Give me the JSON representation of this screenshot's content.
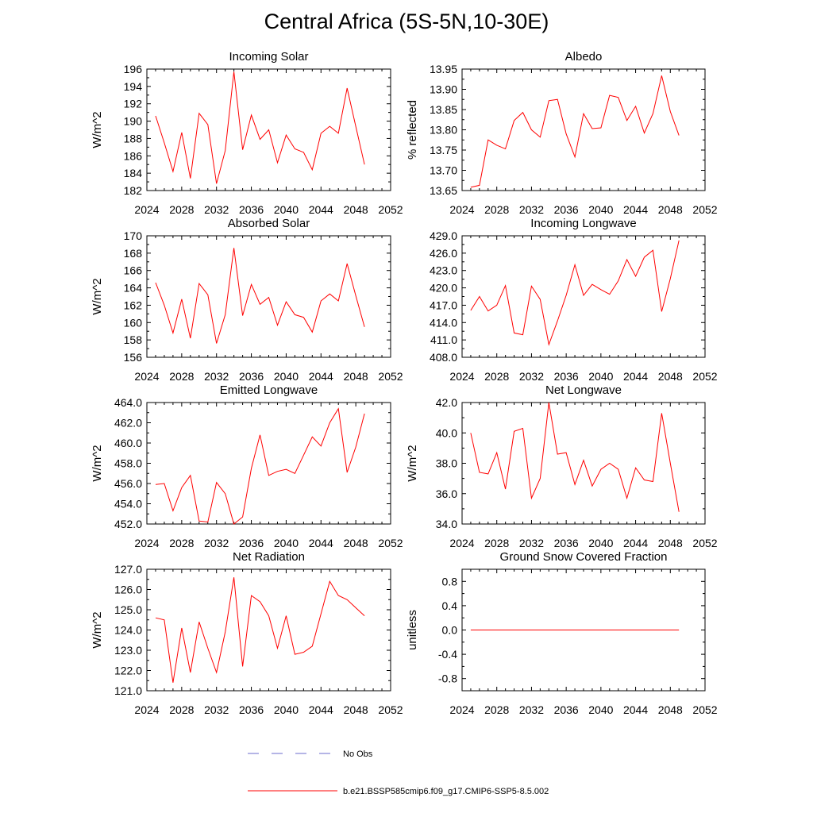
{
  "page_title": "Central Africa (5S-5N,10-30E)",
  "colors": {
    "model": "#ff0000",
    "obs": "#6b6bcc",
    "axis": "#000000"
  },
  "legend": [
    {
      "label": "No Obs",
      "style": "dashed",
      "color": "#6b6bcc"
    },
    {
      "label": "b.e21.BSSP585cmip6.f09_g17.CMIP6-SSP5-8.5.002",
      "style": "solid",
      "color": "#ff0000"
    }
  ],
  "chart_data": [
    {
      "type": "line",
      "title": "Incoming Solar",
      "ylabel": "W/m^2",
      "xlim": [
        2024,
        2052
      ],
      "xticks": [
        "2024",
        "2028",
        "2032",
        "2036",
        "2040",
        "2044",
        "2048",
        "2052"
      ],
      "ylim": [
        182,
        196
      ],
      "yticks": [
        "182",
        "184",
        "186",
        "188",
        "190",
        "192",
        "194",
        "196"
      ],
      "series": [
        {
          "x": [
            2025,
            2026,
            2027,
            2028,
            2029,
            2030,
            2031,
            2032,
            2033,
            2034,
            2035,
            2036,
            2037,
            2038,
            2039,
            2040,
            2041,
            2042,
            2043,
            2044,
            2045,
            2046,
            2047,
            2048,
            2049
          ],
          "y": [
            190.6,
            187.5,
            184.2,
            188.7,
            183.4,
            190.9,
            189.6,
            182.8,
            186.6,
            195.7,
            186.7,
            190.7,
            187.9,
            189.0,
            185.2,
            188.4,
            186.8,
            186.4,
            184.4,
            188.6,
            189.4,
            188.6,
            193.8,
            189.4,
            185.0
          ]
        }
      ]
    },
    {
      "type": "line",
      "title": "Albedo",
      "ylabel": "% reflected",
      "xlim": [
        2024,
        2052
      ],
      "xticks": [
        "2024",
        "2028",
        "2032",
        "2036",
        "2040",
        "2044",
        "2048",
        "2052"
      ],
      "ylim": [
        13.65,
        13.95
      ],
      "yticks": [
        "13.65",
        "13.70",
        "13.75",
        "13.80",
        "13.85",
        "13.90",
        "13.95"
      ],
      "series": [
        {
          "x": [
            2025,
            2026,
            2027,
            2028,
            2029,
            2030,
            2031,
            2032,
            2033,
            2034,
            2035,
            2036,
            2037,
            2038,
            2039,
            2040,
            2041,
            2042,
            2043,
            2044,
            2045,
            2046,
            2047,
            2048,
            2049
          ],
          "y": [
            13.658,
            13.663,
            13.775,
            13.762,
            13.753,
            13.823,
            13.843,
            13.8,
            13.782,
            13.872,
            13.875,
            13.79,
            13.733,
            13.84,
            13.803,
            13.805,
            13.885,
            13.88,
            13.823,
            13.858,
            13.792,
            13.84,
            13.934,
            13.845,
            13.786
          ]
        }
      ]
    },
    {
      "type": "line",
      "title": "Absorbed Solar",
      "ylabel": "W/m^2",
      "xlim": [
        2024,
        2052
      ],
      "xticks": [
        "2024",
        "2028",
        "2032",
        "2036",
        "2040",
        "2044",
        "2048",
        "2052"
      ],
      "ylim": [
        156,
        170
      ],
      "yticks": [
        "156",
        "158",
        "160",
        "162",
        "164",
        "166",
        "168",
        "170"
      ],
      "series": [
        {
          "x": [
            2025,
            2026,
            2027,
            2028,
            2029,
            2030,
            2031,
            2032,
            2033,
            2034,
            2035,
            2036,
            2037,
            2038,
            2039,
            2040,
            2041,
            2042,
            2043,
            2044,
            2045,
            2046,
            2047,
            2048,
            2049
          ],
          "y": [
            164.6,
            162.0,
            158.8,
            162.7,
            158.2,
            164.5,
            163.2,
            157.6,
            160.9,
            168.6,
            160.8,
            164.4,
            162.1,
            162.9,
            159.7,
            162.4,
            160.9,
            160.6,
            158.9,
            162.5,
            163.3,
            162.5,
            166.8,
            163.1,
            159.5
          ]
        }
      ]
    },
    {
      "type": "line",
      "title": "Incoming Longwave",
      "ylabel": "",
      "xlim": [
        2024,
        2052
      ],
      "xticks": [
        "2024",
        "2028",
        "2032",
        "2036",
        "2040",
        "2044",
        "2048",
        "2052"
      ],
      "ylim": [
        408,
        429
      ],
      "yticks": [
        "408.0",
        "411.0",
        "414.0",
        "417.0",
        "420.0",
        "423.0",
        "426.0",
        "429.0"
      ],
      "series": [
        {
          "x": [
            2025,
            2026,
            2027,
            2028,
            2029,
            2030,
            2031,
            2032,
            2033,
            2034,
            2035,
            2036,
            2037,
            2038,
            2039,
            2040,
            2041,
            2042,
            2043,
            2044,
            2045,
            2046,
            2047,
            2048,
            2049
          ],
          "y": [
            416.1,
            418.5,
            416.0,
            417.0,
            420.4,
            412.2,
            411.9,
            420.3,
            418.0,
            410.2,
            414.3,
            418.7,
            424.0,
            418.7,
            420.6,
            419.7,
            418.9,
            421.2,
            424.9,
            422.0,
            425.3,
            426.5,
            415.9,
            421.6,
            428.2
          ]
        }
      ]
    },
    {
      "type": "line",
      "title": "Emitted Longwave",
      "ylabel": "W/m^2",
      "xlim": [
        2024,
        2052
      ],
      "xticks": [
        "2024",
        "2028",
        "2032",
        "2036",
        "2040",
        "2044",
        "2048",
        "2052"
      ],
      "ylim": [
        452,
        464
      ],
      "yticks": [
        "452.0",
        "454.0",
        "456.0",
        "458.0",
        "460.0",
        "462.0",
        "464.0"
      ],
      "series": [
        {
          "x": [
            2025,
            2026,
            2027,
            2028,
            2029,
            2030,
            2031,
            2032,
            2033,
            2034,
            2035,
            2036,
            2037,
            2038,
            2039,
            2040,
            2041,
            2042,
            2043,
            2044,
            2045,
            2046,
            2047,
            2048,
            2049
          ],
          "y": [
            455.9,
            456.0,
            453.3,
            455.6,
            456.8,
            452.3,
            452.2,
            456.1,
            455.0,
            452.0,
            452.7,
            457.5,
            460.8,
            456.8,
            457.2,
            457.4,
            457.0,
            458.8,
            460.6,
            459.7,
            462.0,
            463.4,
            457.1,
            459.6,
            462.9
          ]
        }
      ]
    },
    {
      "type": "line",
      "title": "Net Longwave",
      "ylabel": "W/m^2",
      "xlim": [
        2024,
        2052
      ],
      "xticks": [
        "2024",
        "2028",
        "2032",
        "2036",
        "2040",
        "2044",
        "2048",
        "2052"
      ],
      "ylim": [
        34,
        42
      ],
      "yticks": [
        "34.0",
        "36.0",
        "38.0",
        "40.0",
        "42.0"
      ],
      "series": [
        {
          "x": [
            2025,
            2026,
            2027,
            2028,
            2029,
            2030,
            2031,
            2032,
            2033,
            2034,
            2035,
            2036,
            2037,
            2038,
            2039,
            2040,
            2041,
            2042,
            2043,
            2044,
            2045,
            2046,
            2047,
            2048,
            2049
          ],
          "y": [
            40.0,
            37.4,
            37.3,
            38.7,
            36.3,
            40.1,
            40.3,
            35.7,
            37.0,
            42.0,
            38.6,
            38.7,
            36.6,
            38.2,
            36.5,
            37.6,
            38.0,
            37.6,
            35.7,
            37.7,
            36.9,
            36.8,
            41.3,
            38.0,
            34.8
          ]
        }
      ]
    },
    {
      "type": "line",
      "title": "Net Radiation",
      "ylabel": "W/m^2",
      "xlim": [
        2024,
        2052
      ],
      "xticks": [
        "2024",
        "2028",
        "2032",
        "2036",
        "2040",
        "2044",
        "2048",
        "2052"
      ],
      "ylim": [
        121,
        127
      ],
      "yticks": [
        "121.0",
        "122.0",
        "123.0",
        "124.0",
        "125.0",
        "126.0",
        "127.0"
      ],
      "series": [
        {
          "x": [
            2025,
            2026,
            2027,
            2028,
            2029,
            2030,
            2031,
            2032,
            2033,
            2034,
            2035,
            2036,
            2037,
            2038,
            2039,
            2040,
            2041,
            2042,
            2043,
            2044,
            2045,
            2046,
            2047,
            2048,
            2049
          ],
          "y": [
            124.6,
            124.5,
            121.4,
            124.1,
            121.9,
            124.4,
            123.1,
            121.9,
            123.9,
            126.6,
            122.2,
            125.7,
            125.4,
            124.7,
            123.1,
            124.7,
            122.8,
            122.9,
            123.2,
            124.8,
            126.4,
            125.7,
            125.5,
            125.1,
            124.7
          ]
        }
      ]
    },
    {
      "type": "line",
      "title": "Ground Snow Covered Fraction",
      "ylabel": "unitless",
      "xlim": [
        2024,
        2052
      ],
      "xticks": [
        "2024",
        "2028",
        "2032",
        "2036",
        "2040",
        "2044",
        "2048",
        "2052"
      ],
      "ylim": [
        -1.0,
        1.0
      ],
      "yticks": [
        "-0.8",
        "-0.4",
        "0.0",
        "0.4",
        "0.8"
      ],
      "ytick_values": [
        -0.8,
        -0.4,
        0.0,
        0.4,
        0.8
      ],
      "series": [
        {
          "x": [
            2025,
            2049
          ],
          "y": [
            0.0,
            0.0
          ]
        }
      ]
    }
  ]
}
